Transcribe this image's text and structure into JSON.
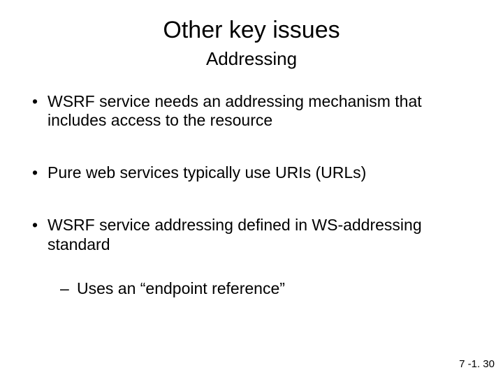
{
  "title": "Other key issues",
  "subtitle": "Addressing",
  "bullets": [
    {
      "text": "WSRF service needs an addressing mechanism that includes access to the resource"
    },
    {
      "text": "Pure web services typically use URIs (URLs)"
    },
    {
      "text": "WSRF service addressing defined in WS-addressing standard",
      "sub": [
        {
          "text": "Uses an “endpoint reference”"
        }
      ]
    }
  ],
  "footer": "7 -1. 30",
  "style": {
    "background_color": "#ffffff",
    "text_color": "#000000",
    "font_family": "Arial",
    "title_fontsize": 34,
    "subtitle_fontsize": 26,
    "body_fontsize": 23,
    "footer_fontsize": 15,
    "bullet_glyph": "•",
    "subbullet_glyph": "–"
  }
}
